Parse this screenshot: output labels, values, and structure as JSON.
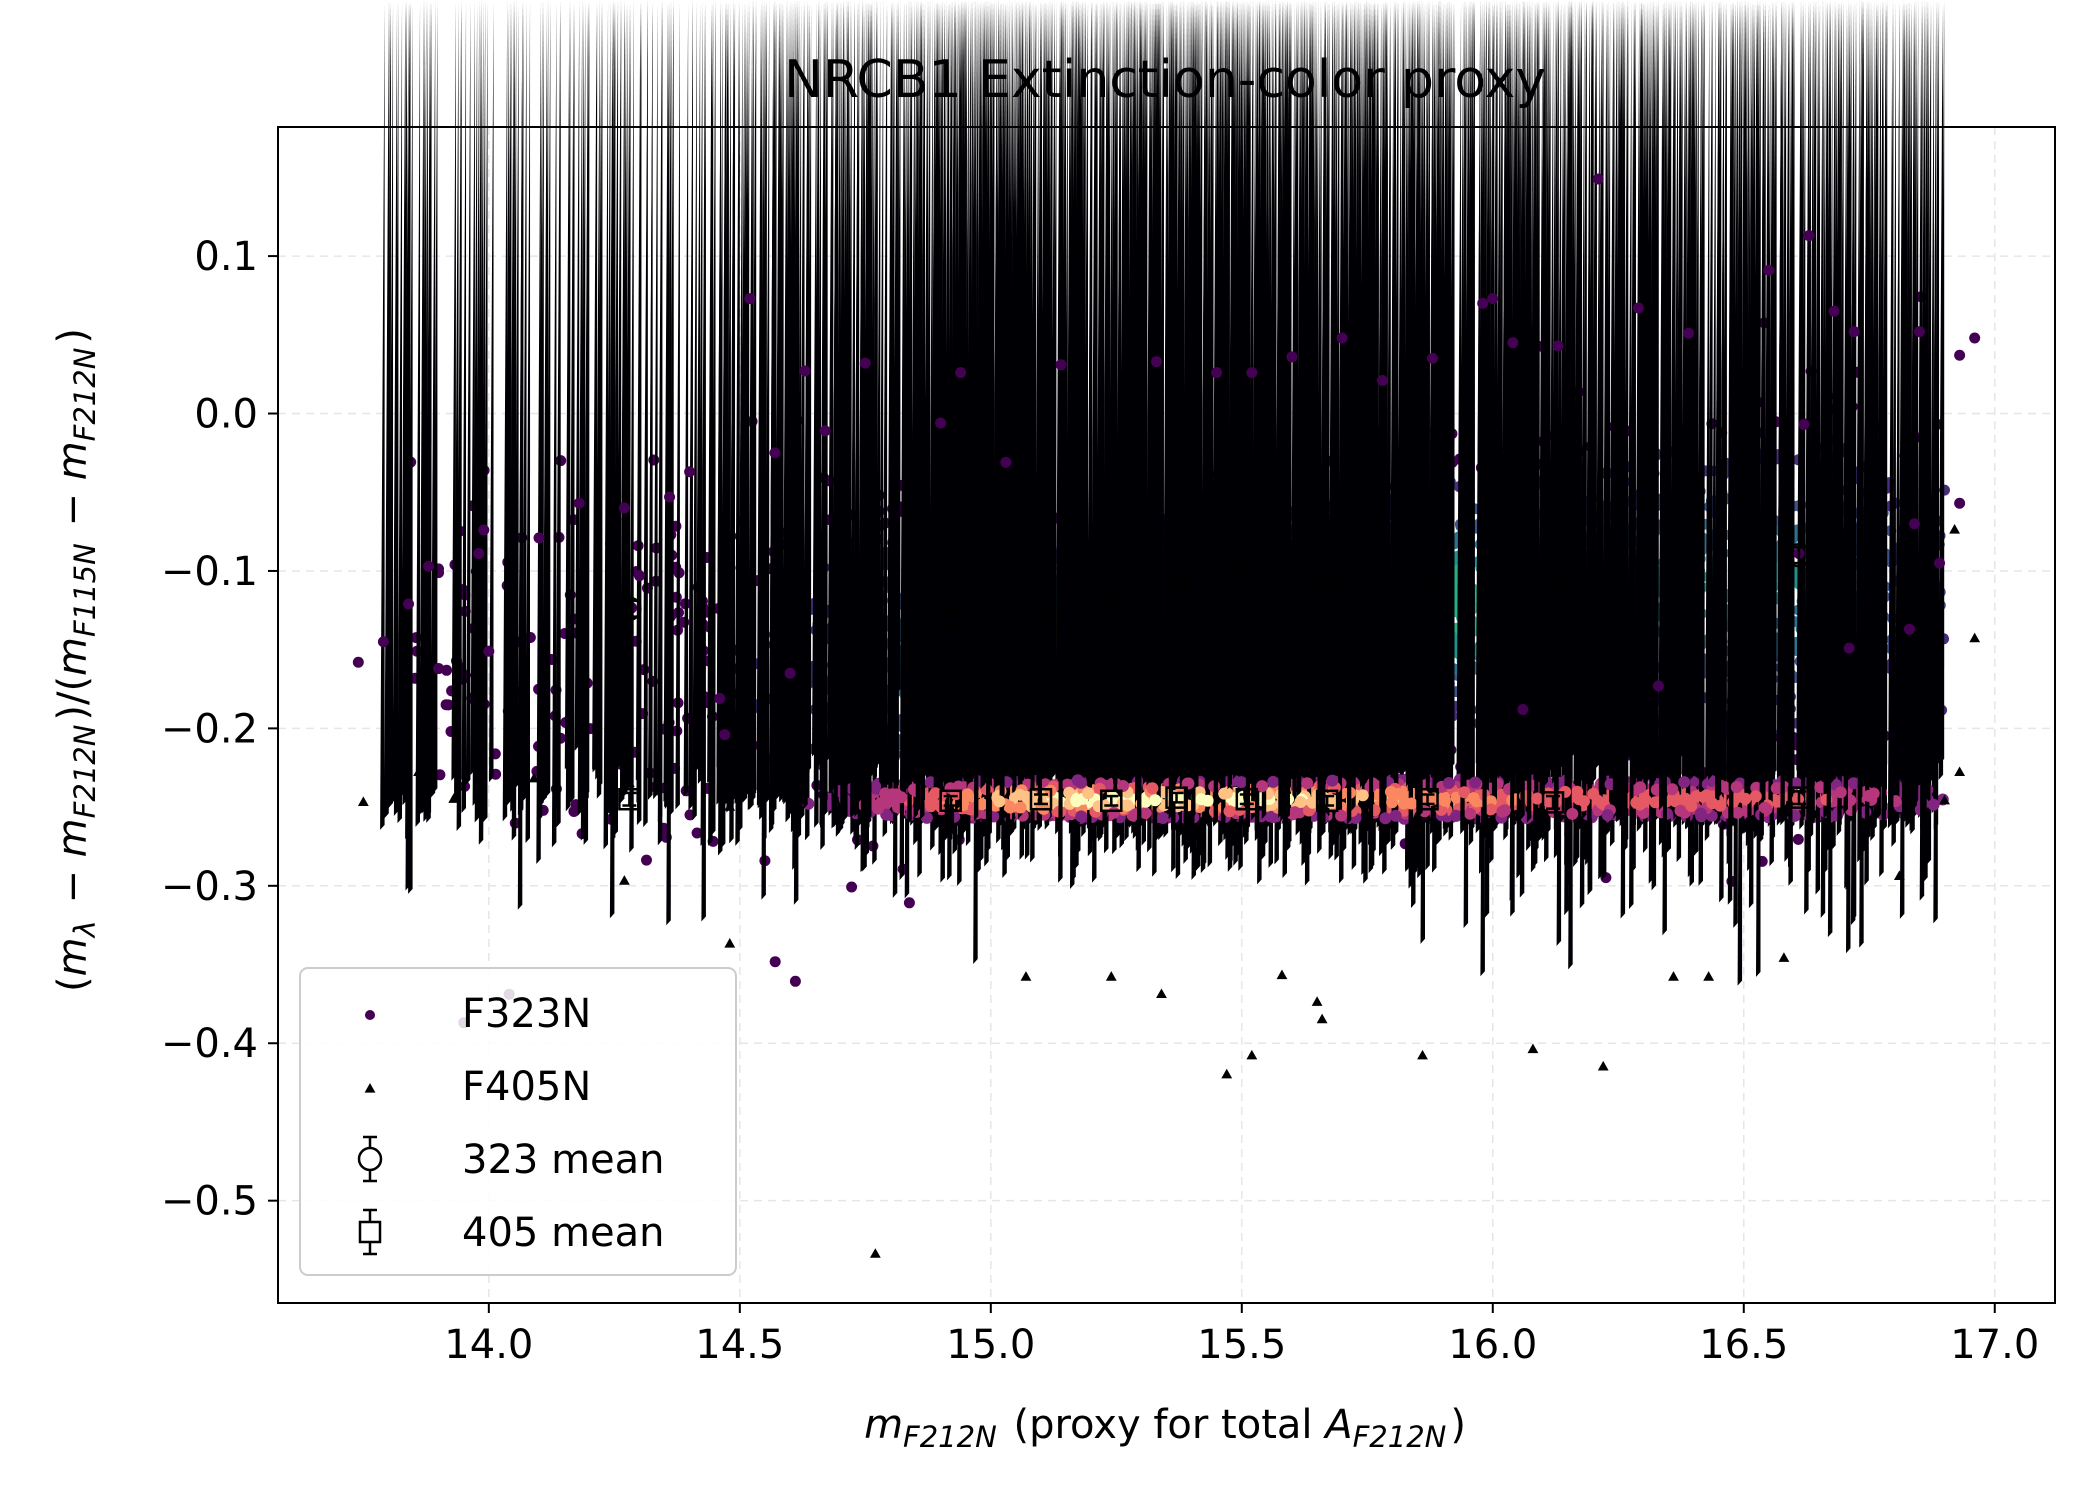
{
  "chart_data": {
    "type": "scatter",
    "title": "NRCB1 Extinction-color proxy",
    "xlabel": {
      "parts": [
        {
          "text": "m",
          "style": "italic"
        },
        {
          "text": "F212N",
          "style": "italic-sub"
        },
        {
          "text": "  (proxy for total ",
          "style": "normal"
        },
        {
          "text": "A",
          "style": "italic"
        },
        {
          "text": "F212N",
          "style": "italic-sub"
        },
        {
          "text": ")",
          "style": "normal"
        }
      ]
    },
    "ylabel": {
      "parts": [
        {
          "text": "(",
          "style": "normal"
        },
        {
          "text": "m",
          "style": "italic"
        },
        {
          "text": "λ",
          "style": "italic-sub"
        },
        {
          "text": " − ",
          "style": "normal"
        },
        {
          "text": "m",
          "style": "italic"
        },
        {
          "text": "F212N",
          "style": "italic-sub"
        },
        {
          "text": ")/(",
          "style": "normal"
        },
        {
          "text": "m",
          "style": "italic"
        },
        {
          "text": "F115N",
          "style": "italic-sub"
        },
        {
          "text": " − ",
          "style": "normal"
        },
        {
          "text": "m",
          "style": "italic"
        },
        {
          "text": "F212N",
          "style": "italic-sub"
        },
        {
          "text": ")",
          "style": "normal"
        }
      ]
    },
    "xlim": [
      13.58,
      17.12
    ],
    "ylim": [
      -0.565,
      0.182
    ],
    "xticks": [
      {
        "value": 14.0,
        "label": "14.0"
      },
      {
        "value": 14.5,
        "label": "14.5"
      },
      {
        "value": 15.0,
        "label": "15.0"
      },
      {
        "value": 15.5,
        "label": "15.5"
      },
      {
        "value": 16.0,
        "label": "16.0"
      },
      {
        "value": 16.5,
        "label": "16.5"
      },
      {
        "value": 17.0,
        "label": "17.0"
      }
    ],
    "yticks": [
      {
        "value": 0.1,
        "label": "0.1"
      },
      {
        "value": 0.0,
        "label": "0.0"
      },
      {
        "value": -0.1,
        "label": "−0.1"
      },
      {
        "value": -0.2,
        "label": "−0.2"
      },
      {
        "value": -0.3,
        "label": "−0.3"
      },
      {
        "value": -0.4,
        "label": "−0.4"
      },
      {
        "value": -0.5,
        "label": "−0.5"
      }
    ],
    "grid": true,
    "legend_position": "lower-left",
    "series": [
      {
        "name": "F323N",
        "marker": "circle",
        "colormap": "viridis",
        "color_note": "points colored by local density",
        "color": "#440154",
        "distribution": {
          "x_range": [
            13.74,
            16.95
          ],
          "y_center": -0.13,
          "y_spread": 0.045,
          "count": 6000,
          "note": "dense cloud around y ≈ -0.13, denser between x 15.0 and 15.8"
        },
        "points": [
          [
            13.74,
            -0.158
          ],
          [
            13.79,
            -0.145
          ],
          [
            13.84,
            -0.121
          ],
          [
            13.88,
            -0.097
          ],
          [
            13.9,
            -0.162
          ],
          [
            13.98,
            -0.089
          ],
          [
            13.99,
            -0.074
          ],
          [
            14.1,
            -0.079
          ],
          [
            14.18,
            -0.057
          ],
          [
            14.3,
            -0.103
          ],
          [
            14.27,
            -0.06
          ],
          [
            14.36,
            -0.053
          ],
          [
            14.4,
            -0.037
          ],
          [
            14.52,
            0.073
          ],
          [
            14.57,
            -0.025
          ],
          [
            14.63,
            0.027
          ],
          [
            14.67,
            -0.011
          ],
          [
            14.75,
            0.032
          ],
          [
            14.9,
            -0.006
          ],
          [
            14.94,
            0.026
          ],
          [
            15.03,
            -0.031
          ],
          [
            15.14,
            0.031
          ],
          [
            15.33,
            0.033
          ],
          [
            15.45,
            0.026
          ],
          [
            15.52,
            0.026
          ],
          [
            15.6,
            0.036
          ],
          [
            15.7,
            0.048
          ],
          [
            15.78,
            0.021
          ],
          [
            15.88,
            0.035
          ],
          [
            15.98,
            0.07
          ],
          [
            16.0,
            0.073
          ],
          [
            16.04,
            0.045
          ],
          [
            16.13,
            0.043
          ],
          [
            16.21,
            0.149
          ],
          [
            16.29,
            0.067
          ],
          [
            16.39,
            0.051
          ],
          [
            16.55,
            0.091
          ],
          [
            16.63,
            0.113
          ],
          [
            16.68,
            0.065
          ],
          [
            16.72,
            0.052
          ],
          [
            16.85,
            0.052
          ],
          [
            16.93,
            0.037
          ],
          [
            16.96,
            0.048
          ],
          [
            16.93,
            -0.057
          ],
          [
            16.84,
            -0.07
          ],
          [
            16.89,
            -0.095
          ],
          [
            16.83,
            -0.137
          ],
          [
            16.71,
            -0.149
          ],
          [
            16.33,
            -0.173
          ],
          [
            16.06,
            -0.188
          ],
          [
            16.61,
            -0.089
          ],
          [
            16.62,
            -0.007
          ],
          [
            14.47,
            -0.204
          ],
          [
            14.6,
            -0.165
          ],
          [
            14.46,
            -0.181
          ],
          [
            14.0,
            -0.151
          ]
        ],
        "mean": [
          {
            "x": 14.28,
            "y": -0.124,
            "err": 0.005
          },
          {
            "x": 14.92,
            "y": -0.13,
            "err": 0.004
          },
          {
            "x": 15.1,
            "y": -0.123,
            "err": 0.003
          },
          {
            "x": 15.24,
            "y": -0.117,
            "err": 0.003
          },
          {
            "x": 15.37,
            "y": -0.108,
            "err": 0.003
          },
          {
            "x": 15.51,
            "y": -0.102,
            "err": 0.004
          },
          {
            "x": 15.67,
            "y": -0.104,
            "err": 0.003
          },
          {
            "x": 15.87,
            "y": -0.107,
            "err": 0.003
          },
          {
            "x": 16.12,
            "y": -0.111,
            "err": 0.004
          },
          {
            "x": 16.61,
            "y": -0.09,
            "err": 0.005
          }
        ]
      },
      {
        "name": "F405N",
        "marker": "triangle",
        "colormap": "magma",
        "color_note": "points colored by local density",
        "color": "#000004",
        "distribution": {
          "x_range": [
            13.74,
            16.95
          ],
          "y_center": -0.245,
          "y_spread": 0.012,
          "count": 6000,
          "note": "tight band around y ≈ -0.245 with wide scatter of outliers"
        },
        "points": [
          [
            13.75,
            -0.247
          ],
          [
            13.8,
            -0.235
          ],
          [
            13.86,
            -0.228
          ],
          [
            13.93,
            -0.245
          ],
          [
            14.09,
            -0.232
          ],
          [
            14.27,
            -0.297
          ],
          [
            14.48,
            -0.337
          ],
          [
            14.77,
            -0.534
          ],
          [
            15.07,
            -0.358
          ],
          [
            15.24,
            -0.358
          ],
          [
            15.34,
            -0.369
          ],
          [
            15.47,
            -0.42
          ],
          [
            15.52,
            -0.408
          ],
          [
            15.58,
            -0.357
          ],
          [
            15.65,
            -0.374
          ],
          [
            15.66,
            -0.385
          ],
          [
            15.86,
            -0.408
          ],
          [
            16.08,
            -0.404
          ],
          [
            16.22,
            -0.415
          ],
          [
            16.36,
            -0.358
          ],
          [
            16.43,
            -0.358
          ],
          [
            16.58,
            -0.346
          ],
          [
            16.81,
            -0.294
          ],
          [
            16.9,
            -0.246
          ],
          [
            16.93,
            -0.228
          ],
          [
            16.92,
            -0.074
          ],
          [
            16.96,
            -0.143
          ],
          [
            16.58,
            -0.007
          ],
          [
            15.91,
            -0.09
          ],
          [
            15.4,
            -0.09
          ],
          [
            15.44,
            -0.038
          ],
          [
            14.95,
            -0.028
          ],
          [
            15.16,
            -0.142
          ],
          [
            15.04,
            -0.13
          ],
          [
            14.28,
            -0.235
          ],
          [
            14.48,
            -0.25
          ]
        ],
        "mean": [
          {
            "x": 14.28,
            "y": -0.245,
            "err": 0.004
          },
          {
            "x": 14.92,
            "y": -0.246,
            "err": 0.003
          },
          {
            "x": 15.1,
            "y": -0.245,
            "err": 0.003
          },
          {
            "x": 15.24,
            "y": -0.246,
            "err": 0.003
          },
          {
            "x": 15.37,
            "y": -0.244,
            "err": 0.003
          },
          {
            "x": 15.51,
            "y": -0.245,
            "err": 0.003
          },
          {
            "x": 15.67,
            "y": -0.246,
            "err": 0.003
          },
          {
            "x": 15.87,
            "y": -0.245,
            "err": 0.003
          },
          {
            "x": 16.12,
            "y": -0.247,
            "err": 0.004
          },
          {
            "x": 16.61,
            "y": -0.244,
            "err": 0.004
          }
        ]
      }
    ],
    "legend": [
      {
        "label": "F323N",
        "marker": "circle-dot"
      },
      {
        "label": "F405N",
        "marker": "triangle-small"
      },
      {
        "label": "323 mean",
        "marker": "circle-errorbar"
      },
      {
        "label": "405 mean",
        "marker": "square-errorbar"
      }
    ]
  }
}
